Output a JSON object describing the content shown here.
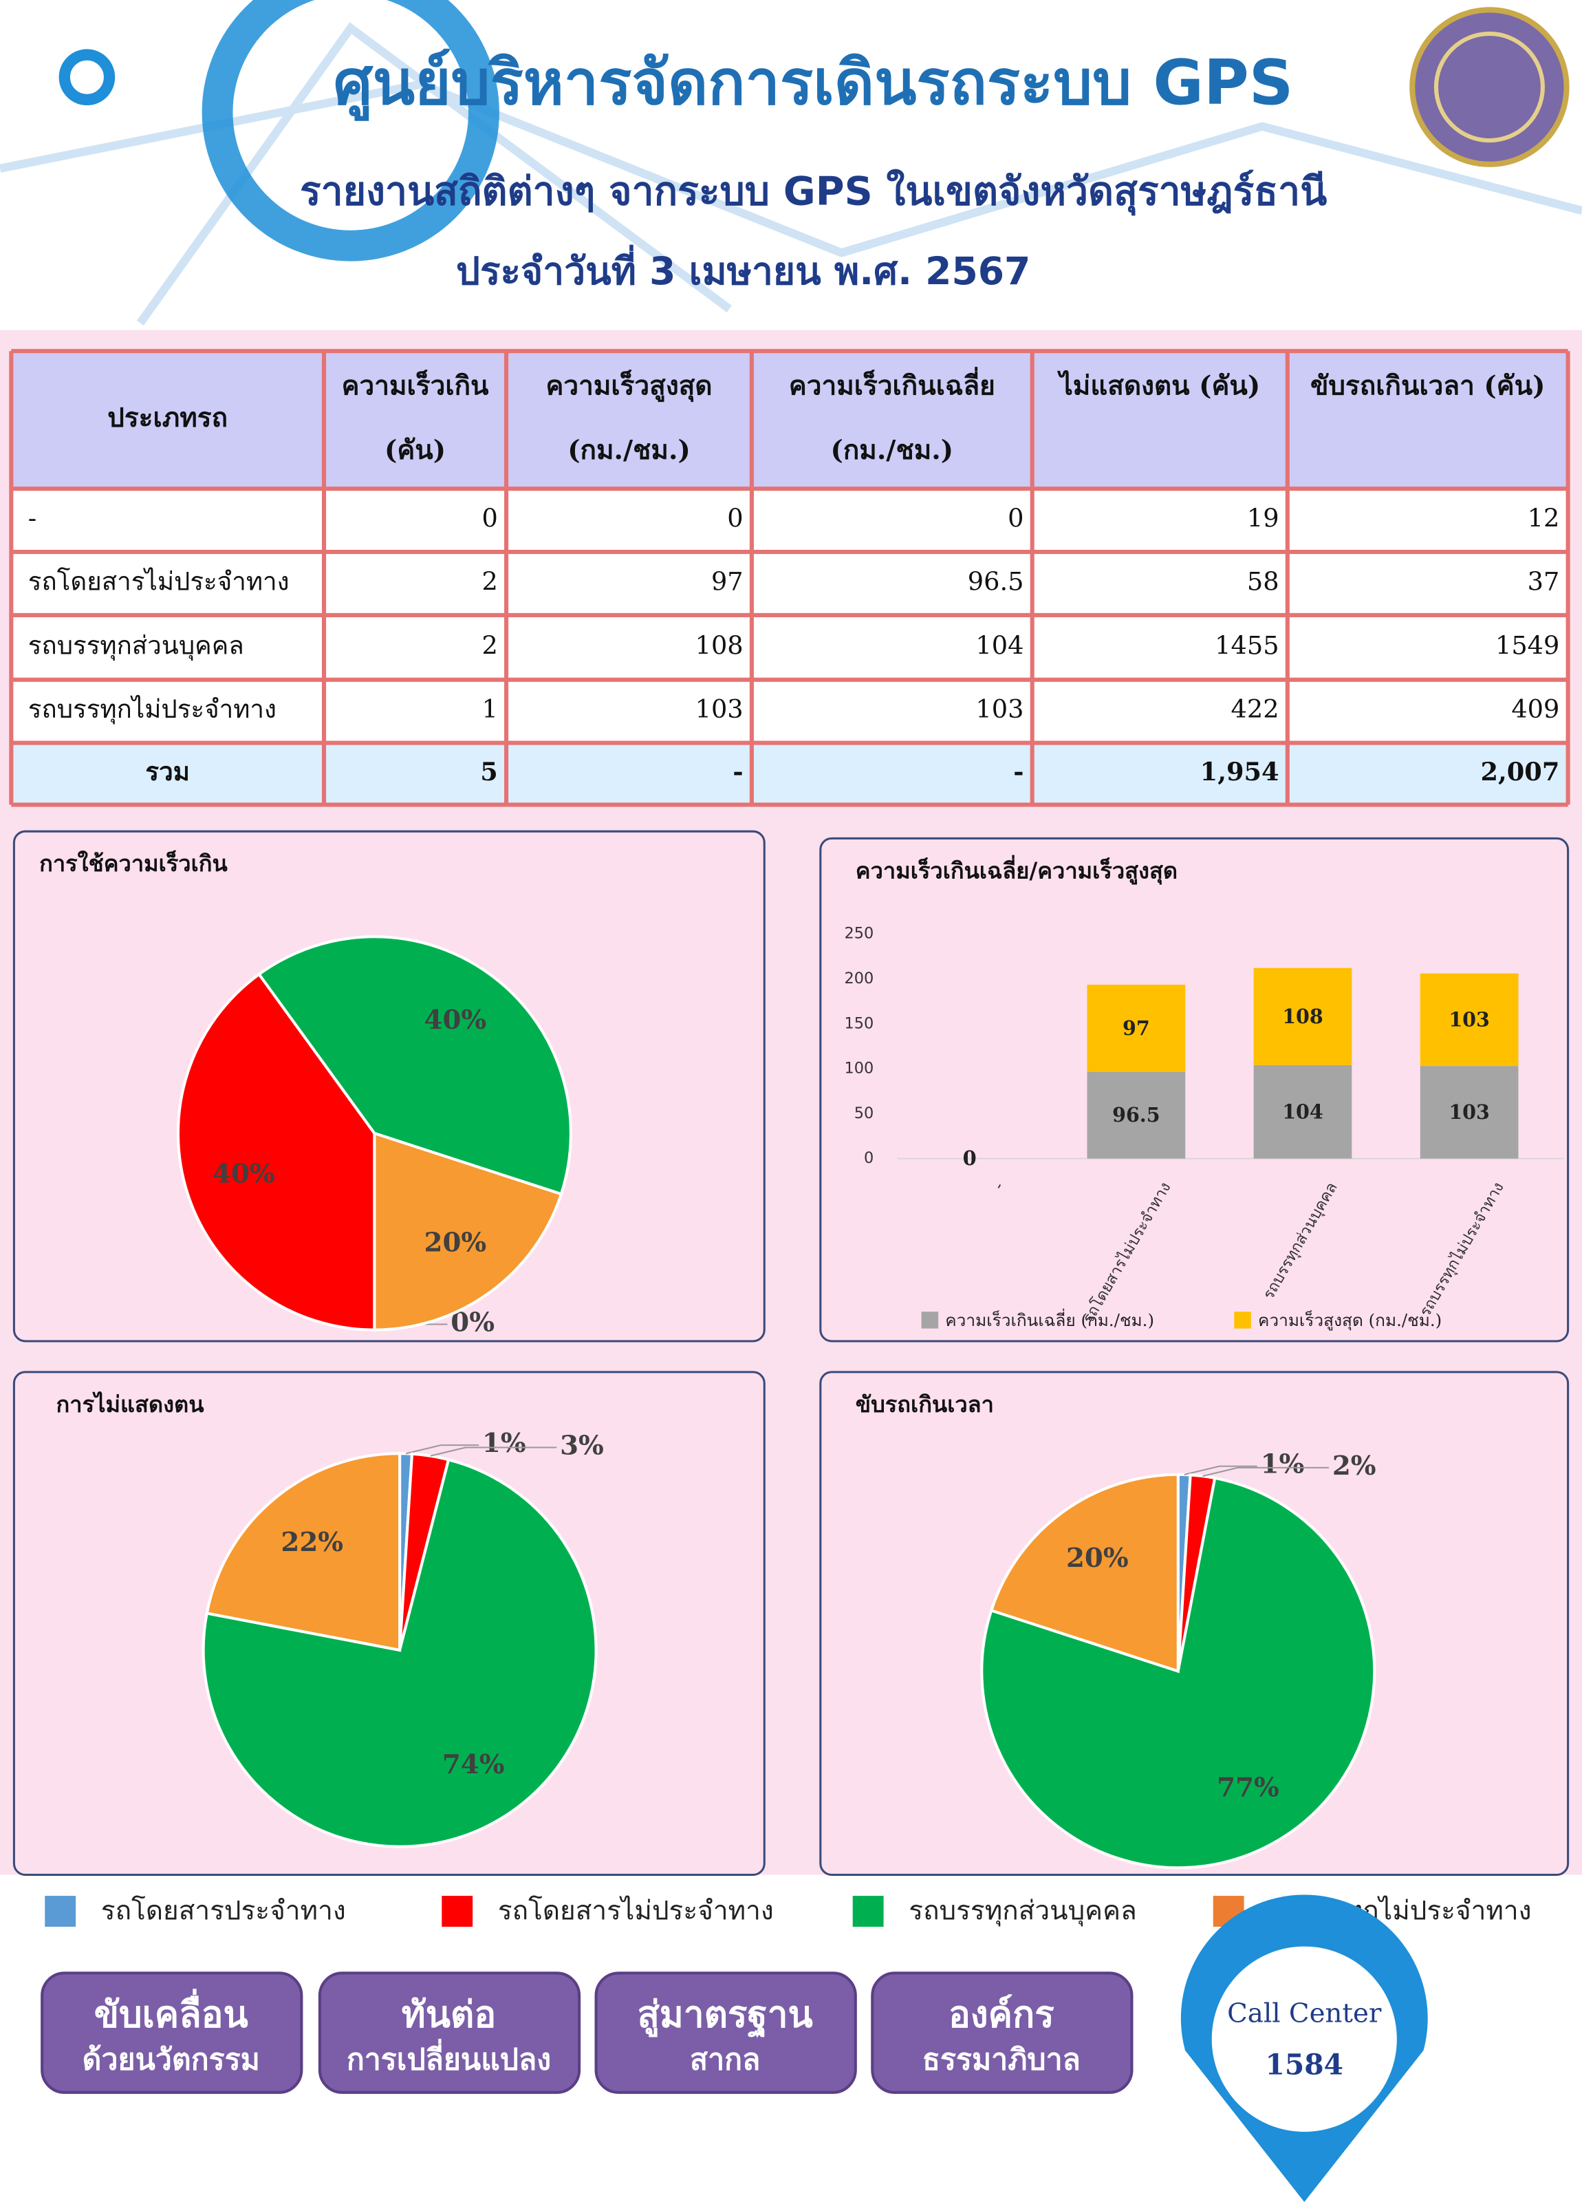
{
  "header": {
    "title": "ศูนย์บริหารจัดการเดินรถระบบ GPS",
    "subtitle": "รายงานสถิติต่างๆ จากระบบ GPS ในเขตจังหวัดสุราษฎร์ธานี",
    "date": "ประจำวันที่ 3 เมษายน  พ.ศ. 2567"
  },
  "table": {
    "columns": [
      [
        "ประเภทรถ"
      ],
      [
        "ความเร็วเกิน",
        "(คัน)"
      ],
      [
        "ความเร็วสูงสุด",
        "(กม./ชม.)"
      ],
      [
        "ความเร็วเกินเฉลี่ย",
        "(กม./ชม.)"
      ],
      [
        "ไม่แสดงตน (คัน)"
      ],
      [
        "ขับรถเกินเวลา (คัน)"
      ]
    ],
    "rows": [
      [
        "-",
        0,
        0,
        0,
        19,
        12
      ],
      [
        "รถโดยสารไม่ประจำทาง",
        2,
        97,
        96.5,
        58,
        37
      ],
      [
        "รถบรรทุกส่วนบุคคล",
        2,
        108,
        104,
        1455,
        1549
      ],
      [
        "รถบรรทุกไม่ประจำทาง",
        1,
        103,
        103,
        422,
        409
      ],
      [
        "รวม",
        5,
        "-",
        "-",
        "1,954",
        "2,007"
      ]
    ]
  },
  "chart_data": [
    {
      "type": "pie",
      "title": "การใช้ความเร็วเกิน",
      "values": [
        0,
        40,
        40,
        20
      ],
      "value_labels": [
        "0%",
        "40%",
        "40%",
        "20%"
      ],
      "colors": [
        "#5b9bd5",
        "#ff0000",
        "#00b050",
        "#f79a32"
      ]
    },
    {
      "type": "bar",
      "stacked": true,
      "title": "ความเร็วเกินเฉลี่ย/ความเร็วสูงสุด",
      "categories": [
        "-",
        "รถโดยสารไม่ประจำทาง",
        "รถบรรทุกส่วนบุคคล",
        "รถบรรทุกไม่ประจำทาง"
      ],
      "series": [
        {
          "name": "ความเร็วเกินเฉลี่ย (กม./ชม.)",
          "color": "#a5a5a5",
          "values": [
            0,
            96.5,
            104,
            103
          ]
        },
        {
          "name": "ความเร็วสูงสุด (กม./ชม.)",
          "color": "#ffc000",
          "values": [
            0,
            97,
            108,
            103
          ]
        }
      ],
      "ylim": [
        0,
        250
      ],
      "yticks": [
        0,
        50,
        100,
        150,
        200,
        250
      ]
    },
    {
      "type": "pie",
      "title": "การไม่แสดงตน",
      "values": [
        1,
        3,
        74,
        22
      ],
      "value_labels": [
        "1%",
        "3%",
        "74%",
        "22%"
      ],
      "colors": [
        "#5b9bd5",
        "#ff0000",
        "#00b050",
        "#f79a32"
      ]
    },
    {
      "type": "pie",
      "title": "ขับรถเกินเวลา",
      "values": [
        1,
        2,
        77,
        20
      ],
      "value_labels": [
        "1%",
        "2%",
        "77%",
        "20%"
      ],
      "colors": [
        "#5b9bd5",
        "#ff0000",
        "#00b050",
        "#f79a32"
      ]
    }
  ],
  "legend": [
    {
      "name": "รถโดยสารประจำทาง",
      "color": "#5b9bd5"
    },
    {
      "name": "รถโดยสารไม่ประจำทาง",
      "color": "#ff0000"
    },
    {
      "name": "รถบรรทุกส่วนบุคคล",
      "color": "#00b050"
    },
    {
      "name": "รถบรรทุกไม่ประจำทาง",
      "color": "#ed7d31"
    }
  ],
  "slogans": [
    [
      "ขับเคลื่อน",
      "ด้วยนวัตกรรม"
    ],
    [
      "ทันต่อ",
      "การเปลี่ยนแปลง"
    ],
    [
      "สู่มาตรฐาน",
      "สากล"
    ],
    [
      "องค์กร",
      "ธรรมาภิบาล"
    ]
  ],
  "call_center": {
    "label": "Call Center",
    "number": "1584"
  }
}
